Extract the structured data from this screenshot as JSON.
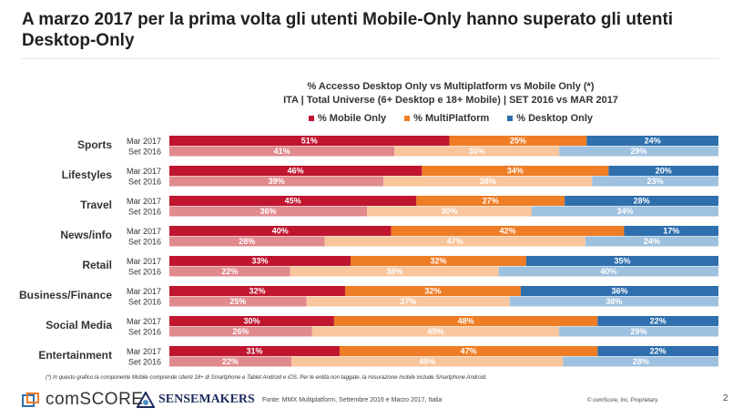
{
  "title": "A marzo 2017 per la prima volta gli utenti Mobile-Only hanno superato gli utenti Desktop-Only",
  "chart_data": {
    "type": "bar",
    "orientation": "horizontal-stacked-100",
    "title": "% Accesso Desktop Only vs Multiplatform vs Mobile Only (*)",
    "subtitle": "ITA | Total Universe (6+ Desktop e 18+ Mobile) | SET 2016 vs MAR 2017",
    "legend": [
      "% Mobile Only",
      "% MultiPlatform",
      "% Desktop Only"
    ],
    "legend_position": "top",
    "periods": [
      "Mar 2017",
      "Set 2016"
    ],
    "colors": {
      "Mar 2017": [
        "#c0152f",
        "#ee7d26",
        "#2f6fad"
      ],
      "Set 2016": [
        "#e08a8e",
        "#f9c59c",
        "#9ec1df"
      ]
    },
    "categories": [
      "Sports",
      "Lifestyles",
      "Travel",
      "News/info",
      "Retail",
      "Business/Finance",
      "Social Media",
      "Entertainment"
    ],
    "series": [
      {
        "name": "Mar 2017",
        "values": [
          [
            51,
            25,
            24
          ],
          [
            46,
            34,
            20
          ],
          [
            45,
            27,
            28
          ],
          [
            40,
            42,
            17
          ],
          [
            33,
            32,
            35
          ],
          [
            32,
            32,
            36
          ],
          [
            30,
            48,
            22
          ],
          [
            31,
            47,
            22
          ]
        ]
      },
      {
        "name": "Set 2016",
        "values": [
          [
            41,
            30,
            29
          ],
          [
            39,
            38,
            23
          ],
          [
            36,
            30,
            34
          ],
          [
            28,
            47,
            24
          ],
          [
            22,
            38,
            40
          ],
          [
            25,
            37,
            38
          ],
          [
            26,
            45,
            29
          ],
          [
            22,
            49,
            28
          ]
        ]
      }
    ],
    "value_suffix": "%"
  },
  "footnote": "(*) In questo grafico la componente Mobile comprende Utenti 18+ di Smartphone e Tablet Android e iOS. Per le entità non taggate, la misurazione mobile include Smartphone Android.",
  "footer": {
    "brand1": "comSCORE.",
    "brand2": "SENSEMAKERS",
    "source": "Fonte: MMX Multiplatform, Settembre 2016 e Marzo 2017, Italia",
    "copyright": "© comScore, Inc. Proprietary.",
    "page": "2"
  }
}
